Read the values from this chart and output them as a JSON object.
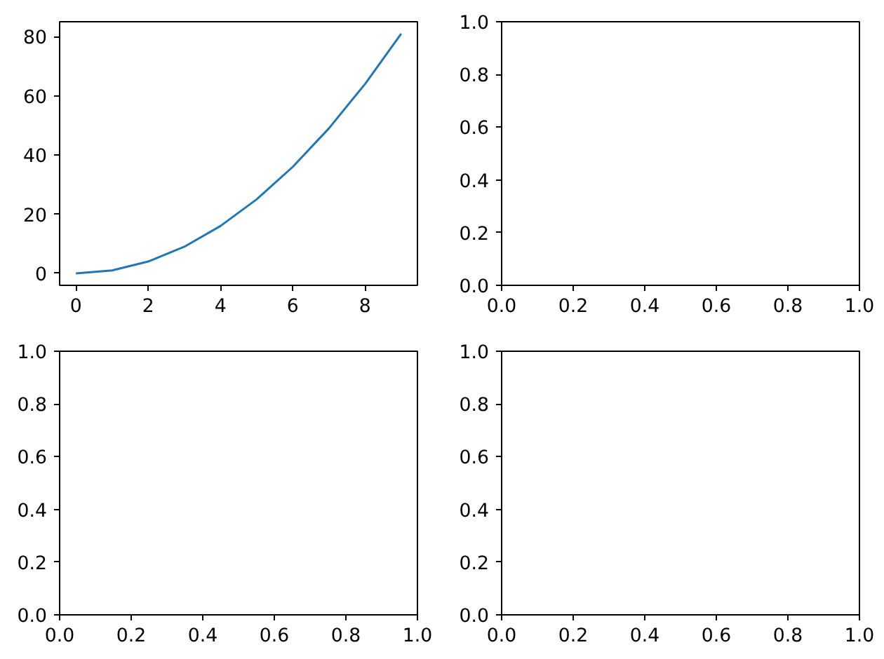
{
  "chart_data": [
    {
      "type": "line",
      "x": [
        0,
        1,
        2,
        3,
        4,
        5,
        6,
        7,
        8,
        9
      ],
      "series": [
        {
          "color": "#1f77b4",
          "values": [
            0,
            1,
            4,
            9,
            16,
            25,
            36,
            49,
            64,
            81
          ]
        }
      ],
      "xlim": [
        -0.45,
        9.45
      ],
      "ylim": [
        -4.05,
        85.05
      ],
      "xticks": [
        0,
        2,
        4,
        6,
        8
      ],
      "yticks": [
        0,
        20,
        40,
        60,
        80
      ]
    },
    {
      "type": "line",
      "xlim": [
        0,
        1
      ],
      "ylim": [
        0,
        1
      ],
      "xticks": [
        {
          "value": 0,
          "label": "0.0"
        },
        {
          "value": 0.2,
          "label": "0.2"
        },
        {
          "value": 0.4,
          "label": "0.4"
        },
        {
          "value": 0.6,
          "label": "0.6"
        },
        {
          "value": 0.8,
          "label": "0.8"
        },
        {
          "value": 1,
          "label": "1.0"
        }
      ],
      "yticks": [
        {
          "value": 0,
          "label": "0.0"
        },
        {
          "value": 0.2,
          "label": "0.2"
        },
        {
          "value": 0.4,
          "label": "0.4"
        },
        {
          "value": 0.6,
          "label": "0.6"
        },
        {
          "value": 0.8,
          "label": "0.8"
        },
        {
          "value": 1,
          "label": "1.0"
        }
      ]
    },
    {
      "type": "line",
      "xlim": [
        0,
        1
      ],
      "ylim": [
        0,
        1
      ],
      "xticks": [
        {
          "value": 0,
          "label": "0.0"
        },
        {
          "value": 0.2,
          "label": "0.2"
        },
        {
          "value": 0.4,
          "label": "0.4"
        },
        {
          "value": 0.6,
          "label": "0.6"
        },
        {
          "value": 0.8,
          "label": "0.8"
        },
        {
          "value": 1,
          "label": "1.0"
        }
      ],
      "yticks": [
        {
          "value": 0,
          "label": "0.0"
        },
        {
          "value": 0.2,
          "label": "0.2"
        },
        {
          "value": 0.4,
          "label": "0.4"
        },
        {
          "value": 0.6,
          "label": "0.6"
        },
        {
          "value": 0.8,
          "label": "0.8"
        },
        {
          "value": 1,
          "label": "1.0"
        }
      ]
    },
    {
      "type": "line",
      "xlim": [
        0,
        1
      ],
      "ylim": [
        0,
        1
      ],
      "xticks": [
        {
          "value": 0,
          "label": "0.0"
        },
        {
          "value": 0.2,
          "label": "0.2"
        },
        {
          "value": 0.4,
          "label": "0.4"
        },
        {
          "value": 0.6,
          "label": "0.6"
        },
        {
          "value": 0.8,
          "label": "0.8"
        },
        {
          "value": 1,
          "label": "1.0"
        }
      ],
      "yticks": [
        {
          "value": 0,
          "label": "0.0"
        },
        {
          "value": 0.2,
          "label": "0.2"
        },
        {
          "value": 0.4,
          "label": "0.4"
        },
        {
          "value": 0.6,
          "label": "0.6"
        },
        {
          "value": 0.8,
          "label": "0.8"
        },
        {
          "value": 1,
          "label": "1.0"
        }
      ]
    }
  ]
}
